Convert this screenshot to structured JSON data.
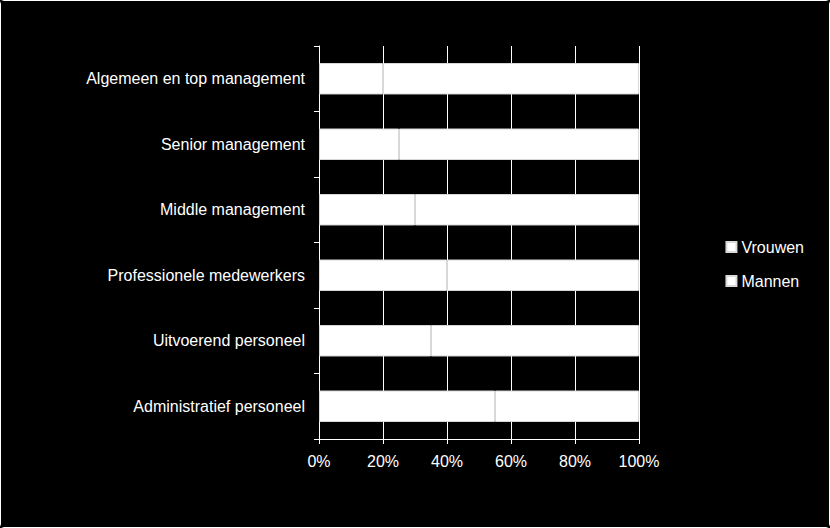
{
  "chart_data": {
    "type": "bar",
    "orientation": "horizontal",
    "stacked": true,
    "categories": [
      "Algemeen en top management",
      "Senior management",
      "Middle management",
      "Professionele medewerkers",
      "Uitvoerend personeel",
      "Administratief personeel"
    ],
    "series": [
      {
        "name": "Vrouwen",
        "color": "#ffffff",
        "values": [
          20,
          25,
          30,
          40,
          35,
          55
        ]
      },
      {
        "name": "Mannen",
        "color": "#ffffff",
        "values": [
          80,
          75,
          70,
          60,
          65,
          45
        ]
      }
    ],
    "xlim": [
      0,
      100
    ],
    "xticks": [
      {
        "value": 0,
        "label": "0%"
      },
      {
        "value": 20,
        "label": "20%"
      },
      {
        "value": 40,
        "label": "40%"
      },
      {
        "value": 60,
        "label": "60%"
      },
      {
        "value": 80,
        "label": "80%"
      },
      {
        "value": 100,
        "label": "100%"
      }
    ],
    "grid": true,
    "legend": "right"
  }
}
